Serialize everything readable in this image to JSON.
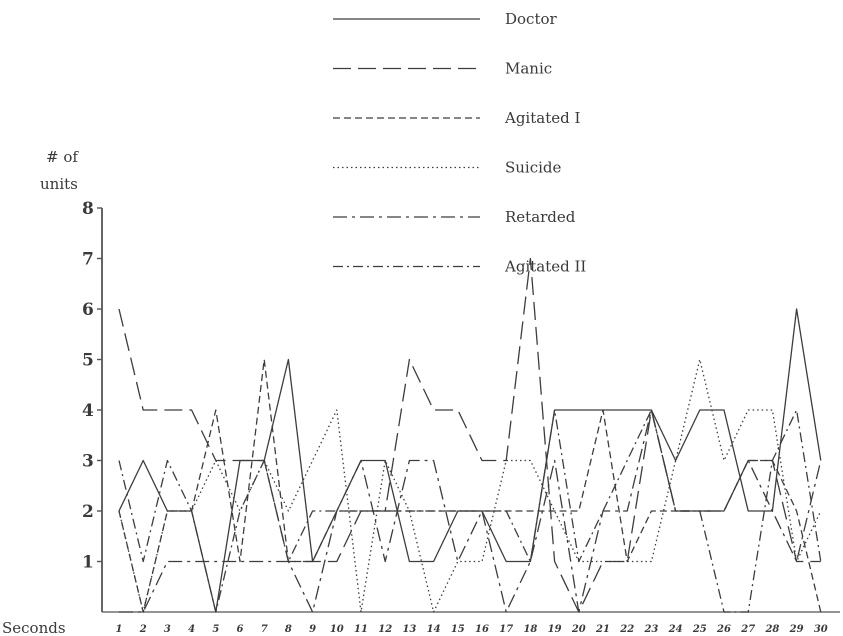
{
  "chart_data": {
    "type": "line",
    "ylabel_line1": "# of",
    "ylabel_line2": "units",
    "xlabel": "Seconds",
    "ylim": [
      0,
      8
    ],
    "xlim": [
      1,
      30
    ],
    "yticks": [
      "1",
      "2",
      "3",
      "4",
      "5",
      "6",
      "7",
      "8"
    ],
    "x": [
      "1",
      "2",
      "3",
      "4",
      "5",
      "6",
      "7",
      "8",
      "9",
      "10",
      "11",
      "12",
      "13",
      "14",
      "15",
      "16",
      "17",
      "18",
      "19",
      "20",
      "21",
      "22",
      "23",
      "24",
      "25",
      "26",
      "27",
      "28",
      "29",
      "30"
    ],
    "grid": false,
    "legend_position": "top-center",
    "series": [
      {
        "name": "Doctor",
        "dash": "solid",
        "values": [
          2,
          3,
          2,
          2,
          0,
          3,
          3,
          5,
          1,
          2,
          3,
          3,
          1,
          1,
          2,
          2,
          1,
          1,
          4,
          4,
          4,
          4,
          4,
          3,
          4,
          4,
          2,
          2,
          6,
          3
        ]
      },
      {
        "name": "Manic",
        "dash": "longdash",
        "values": [
          6,
          4,
          4,
          4,
          3,
          3,
          3,
          1,
          1,
          1,
          2,
          2,
          5,
          4,
          4,
          3,
          3,
          7,
          1,
          0,
          1,
          1,
          4,
          2,
          2,
          2,
          3,
          3,
          1,
          1
        ]
      },
      {
        "name": "Agitated I",
        "dash": "dash",
        "values": [
          2,
          0,
          2,
          2,
          4,
          1,
          5,
          1,
          1,
          2,
          2,
          2,
          2,
          2,
          2,
          2,
          2,
          2,
          2,
          2,
          4,
          1,
          2,
          2,
          2,
          2,
          3,
          3,
          2,
          0
        ]
      },
      {
        "name": "Suicide",
        "dash": "dot",
        "values": [
          2,
          0,
          2,
          2,
          3,
          2,
          3,
          2,
          3,
          4,
          0,
          3,
          2,
          0,
          1,
          1,
          3,
          3,
          2,
          1,
          1,
          1,
          1,
          3,
          5,
          3,
          4,
          4,
          1,
          2
        ]
      },
      {
        "name": "Retarded",
        "dash": "dashdot",
        "values": [
          0,
          0,
          1,
          1,
          1,
          1,
          1,
          1,
          0,
          2,
          3,
          1,
          3,
          3,
          1,
          2,
          0,
          1,
          3,
          0,
          2,
          2,
          4,
          2,
          2,
          2,
          3,
          2,
          1,
          3
        ]
      },
      {
        "name": "Agitated II",
        "dash": "dashdot2",
        "values": [
          3,
          1,
          3,
          2,
          0,
          2,
          3,
          1,
          2,
          2,
          2,
          2,
          2,
          2,
          2,
          2,
          2,
          1,
          4,
          1,
          2,
          3,
          4,
          2,
          2,
          0,
          0,
          3,
          4,
          1
        ]
      }
    ]
  }
}
